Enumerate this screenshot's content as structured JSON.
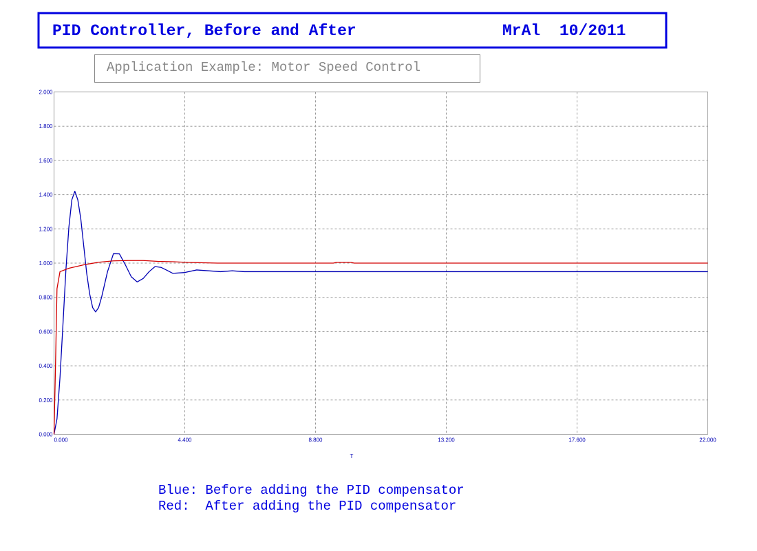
{
  "chart_data": {
    "type": "line",
    "title": "PID Controller, Before and After",
    "author_date": "MrAl  10/2011",
    "subtitle": "Application Example: Motor Speed Control",
    "xlabel": "T",
    "annotations": [
      "Blue: Before adding the PID compensator",
      "Red:  After adding the PID compensator"
    ],
    "xlim": [
      0,
      22
    ],
    "ylim": [
      0,
      2
    ],
    "xticks": [
      {
        "value": 0,
        "label": "0.000"
      },
      {
        "value": 4.4,
        "label": "4.400"
      },
      {
        "value": 8.8,
        "label": "8.800"
      },
      {
        "value": 13.2,
        "label": "13.200"
      },
      {
        "value": 17.6,
        "label": "17.600"
      },
      {
        "value": 22,
        "label": "22.000"
      }
    ],
    "yticks": [
      {
        "value": 0,
        "label": "0.000"
      },
      {
        "value": 0.2,
        "label": "0.200"
      },
      {
        "value": 0.4,
        "label": "0.400"
      },
      {
        "value": 0.6,
        "label": "0.600"
      },
      {
        "value": 0.8,
        "label": "0.800"
      },
      {
        "value": 1,
        "label": "1.000"
      },
      {
        "value": 1.2,
        "label": "1.200"
      },
      {
        "value": 1.4,
        "label": "1.400"
      },
      {
        "value": 1.6,
        "label": "1.600"
      },
      {
        "value": 1.8,
        "label": "1.800"
      },
      {
        "value": 2,
        "label": "2.000"
      }
    ],
    "grid": true,
    "series": [
      {
        "color": "#0000b4",
        "x": [
          0,
          0.1,
          0.2,
          0.3,
          0.4,
          0.5,
          0.6,
          0.7,
          0.8,
          0.9,
          1.0,
          1.1,
          1.2,
          1.3,
          1.4,
          1.5,
          1.6,
          1.8,
          2.0,
          2.2,
          2.4,
          2.6,
          2.8,
          3.0,
          3.2,
          3.4,
          3.6,
          3.8,
          4.0,
          4.4,
          4.8,
          5.2,
          5.6,
          6.0,
          6.4,
          22
        ],
        "values": [
          0,
          0.09,
          0.33,
          0.64,
          0.96,
          1.21,
          1.37,
          1.42,
          1.37,
          1.26,
          1.1,
          0.94,
          0.82,
          0.74,
          0.715,
          0.74,
          0.8,
          0.95,
          1.055,
          1.054,
          0.99,
          0.92,
          0.89,
          0.91,
          0.95,
          0.98,
          0.975,
          0.958,
          0.94,
          0.945,
          0.96,
          0.955,
          0.95,
          0.955,
          0.95,
          0.95
        ]
      },
      {
        "color": "#d20000",
        "x": [
          0,
          0.05,
          0.1,
          0.2,
          0.5,
          1.0,
          1.5,
          2.0,
          2.5,
          3.0,
          3.5,
          4.0,
          4.5,
          5.0,
          5.5,
          9.4,
          9.5,
          10.0,
          10.1,
          22
        ],
        "values": [
          0,
          0.4,
          0.85,
          0.95,
          0.97,
          0.99,
          1.005,
          1.013,
          1.015,
          1.015,
          1.01,
          1.008,
          1.004,
          1.002,
          1.0,
          1.0,
          1.004,
          1.004,
          1.0,
          1.0
        ]
      }
    ]
  }
}
